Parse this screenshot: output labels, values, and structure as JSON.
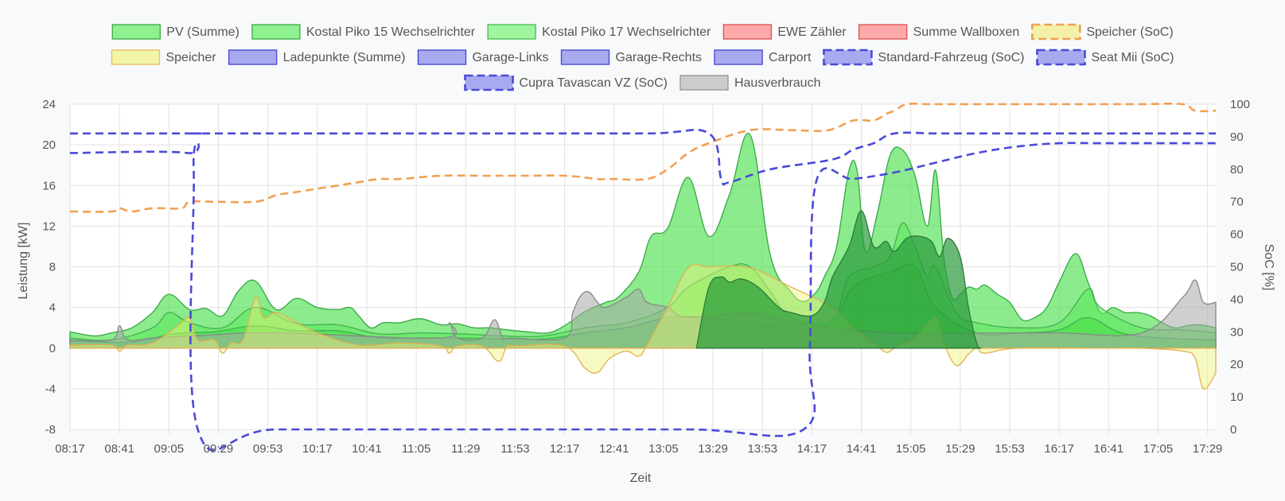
{
  "chart_data": {
    "type": "area",
    "xlabel": "Zeit",
    "ylabel_left": "Leistung [kW]",
    "ylabel_right": "SoC [%]",
    "ylim_left": [
      -8,
      24
    ],
    "ylim_right": [
      0,
      100
    ],
    "yticks_left": [
      -8,
      -4,
      0,
      4,
      8,
      12,
      16,
      20,
      24
    ],
    "yticks_right": [
      0,
      10,
      20,
      30,
      40,
      50,
      60,
      70,
      80,
      90,
      100
    ],
    "grid": true,
    "legend_position": "top",
    "x_ticks": [
      "08:17",
      "08:41",
      "09:05",
      "09:29",
      "09:53",
      "10:17",
      "10:41",
      "11:05",
      "11:29",
      "11:53",
      "12:17",
      "12:41",
      "13:05",
      "13:29",
      "13:53",
      "14:17",
      "14:41",
      "15:05",
      "15:29",
      "15:53",
      "16:17",
      "16:41",
      "17:05",
      "17:29"
    ],
    "x_range_minutes": [
      0,
      556
    ],
    "legend": [
      {
        "name": "PV (Summe)",
        "fill": "#8ff08f",
        "stroke": "#3fb04f",
        "dashed": false
      },
      {
        "name": "Kostal Piko 15 Wechselrichter",
        "fill": "#8ff08f",
        "stroke": "#3fb04f",
        "dashed": false
      },
      {
        "name": "Kostal Piko 17 Wechselrichter",
        "fill": "#9ef59e",
        "stroke": "#4cc05c",
        "dashed": false
      },
      {
        "name": "EWE Zähler",
        "fill": "#ffaaaa",
        "stroke": "#e05555",
        "dashed": false
      },
      {
        "name": "Summe Wallboxen",
        "fill": "#ffaaaa",
        "stroke": "#e05555",
        "dashed": false
      },
      {
        "name": "Speicher (SoC)",
        "fill": "#f5f0a8",
        "stroke": "#f0a050",
        "dashed": true
      },
      {
        "name": "Speicher",
        "fill": "#f2f5a8",
        "stroke": "#e8c060",
        "dashed": false
      },
      {
        "name": "Ladepunkte (Summe)",
        "fill": "#a8aaf0",
        "stroke": "#4a4ad8",
        "dashed": false
      },
      {
        "name": "Garage-Links",
        "fill": "#a8aaf0",
        "stroke": "#4a4ad8",
        "dashed": false
      },
      {
        "name": "Garage-Rechts",
        "fill": "#a8aaf0",
        "stroke": "#4a4ad8",
        "dashed": false
      },
      {
        "name": "Carport",
        "fill": "#a8aaf0",
        "stroke": "#4a4ad8",
        "dashed": false
      },
      {
        "name": "Standard-Fahrzeug (SoC)",
        "fill": "#a8aaf0",
        "stroke": "#4a4ad8",
        "dashed": true
      },
      {
        "name": "Seat Mii (SoC)",
        "fill": "#a8aaf0",
        "stroke": "#4a4ad8",
        "dashed": true
      },
      {
        "name": "Cupra Tavascan VZ (SoC)",
        "fill": "#a8aaf0",
        "stroke": "#4a4ad8",
        "dashed": true
      },
      {
        "name": "Hausverbrauch",
        "fill": "#cccccc",
        "stroke": "#999999",
        "dashed": false
      }
    ],
    "series": [
      {
        "name": "PV (Summe)",
        "axis": "left",
        "kind": "area",
        "fill": "#4fe04f",
        "fill_opacity": 0.65,
        "stroke": "#36a846",
        "x": [
          0,
          12,
          20,
          30,
          40,
          48,
          58,
          66,
          74,
          82,
          90,
          100,
          110,
          120,
          130,
          136,
          140,
          146,
          152,
          160,
          170,
          180,
          188,
          196,
          204,
          212,
          222,
          232,
          240,
          250,
          260,
          266,
          276,
          282,
          290,
          300,
          310,
          320,
          330,
          340,
          350,
          356,
          362,
          366,
          372,
          378,
          382,
          386,
          392,
          398,
          404,
          410,
          416,
          420,
          424,
          428,
          432,
          436,
          440,
          444,
          450,
          456,
          462,
          468,
          474,
          480,
          488,
          494,
          500,
          506,
          512,
          518,
          524,
          530,
          536,
          542,
          548,
          556
        ],
        "y": [
          1.6,
          1.2,
          1.5,
          2.0,
          3.5,
          5.3,
          3.8,
          3.9,
          3.2,
          5.7,
          6.6,
          3.8,
          4.9,
          4.0,
          3.8,
          4.0,
          3.2,
          2.0,
          2.5,
          2.5,
          2.9,
          2.3,
          2.4,
          2.0,
          2.0,
          1.8,
          1.6,
          1.5,
          2.2,
          3.6,
          4.5,
          5.0,
          7.5,
          11.0,
          11.8,
          16.8,
          11.0,
          15.1,
          21.0,
          9.0,
          5.5,
          4.6,
          5.5,
          7.0,
          10.0,
          17.5,
          17.4,
          9.5,
          13.5,
          19.0,
          19.5,
          17.0,
          12.0,
          17.5,
          9.0,
          5.0,
          5.3,
          6.0,
          5.8,
          6.2,
          5.3,
          4.5,
          2.8,
          3.0,
          4.0,
          6.5,
          9.3,
          6.5,
          3.5,
          4.0,
          3.5,
          3.5,
          3.2,
          2.5,
          2.0,
          2.2,
          2.3,
          2.0
        ]
      },
      {
        "name": "Kostal Piko 15 Wechselrichter",
        "axis": "left",
        "kind": "area",
        "fill": "#5ae85a",
        "fill_opacity": 0.55,
        "stroke": "#40b050",
        "x": [
          0,
          20,
          40,
          48,
          58,
          74,
          90,
          110,
          130,
          150,
          170,
          190,
          210,
          230,
          250,
          270,
          290,
          300,
          320,
          330,
          340,
          350,
          370,
          378,
          390,
          398,
          404,
          410,
          416,
          420,
          430,
          440,
          460,
          480,
          494,
          500,
          520,
          540,
          556
        ],
        "y": [
          1.0,
          0.8,
          2.0,
          3.5,
          2.5,
          2.0,
          4.0,
          2.4,
          2.3,
          1.4,
          1.5,
          1.4,
          1.2,
          1.2,
          2.0,
          2.5,
          4.0,
          6.0,
          8.0,
          8.0,
          5.5,
          3.0,
          2.8,
          7.0,
          8.0,
          9.0,
          12.3,
          10.0,
          7.0,
          8.0,
          3.5,
          2.5,
          2.0,
          2.5,
          5.8,
          4.0,
          2.0,
          1.8,
          1.5
        ]
      },
      {
        "name": "Kostal Piko 17 Wechselrichter",
        "axis": "left",
        "kind": "area",
        "fill": "#45dd45",
        "fill_opacity": 0.55,
        "stroke": "#40b050",
        "x": [
          0,
          30,
          50,
          70,
          90,
          110,
          130,
          150,
          170,
          190,
          210,
          230,
          250,
          270,
          290,
          310,
          330,
          340,
          350,
          370,
          380,
          398,
          410,
          420,
          440,
          460,
          480,
          494,
          510,
          530,
          556
        ],
        "y": [
          0.7,
          0.6,
          1.4,
          1.6,
          2.2,
          1.7,
          1.7,
          1.0,
          1.0,
          1.0,
          0.9,
          0.9,
          1.5,
          2.0,
          3.0,
          3.0,
          2.5,
          2.2,
          1.8,
          2.5,
          6.0,
          7.5,
          8.0,
          4.0,
          1.5,
          1.5,
          1.8,
          3.0,
          1.5,
          1.0,
          0.8
        ]
      },
      {
        "name": "Hausverbrauch",
        "axis": "left",
        "kind": "area",
        "fill": "#a8a8a8",
        "fill_opacity": 0.55,
        "stroke": "#888888",
        "x": [
          0,
          20,
          24,
          28,
          40,
          60,
          100,
          180,
          184,
          188,
          200,
          206,
          210,
          214,
          240,
          244,
          248,
          252,
          256,
          260,
          270,
          276,
          280,
          290,
          300,
          330,
          350,
          370,
          400,
          440,
          480,
          520,
          540,
          546,
          550,
          556
        ],
        "y": [
          0.8,
          0.8,
          2.2,
          0.8,
          1.0,
          1.2,
          1.5,
          1.0,
          2.5,
          1.0,
          1.0,
          2.8,
          1.0,
          1.0,
          1.0,
          3.5,
          5.2,
          5.5,
          4.5,
          4.0,
          5.0,
          5.8,
          4.5,
          4.0,
          3.0,
          3.5,
          2.5,
          2.0,
          1.5,
          1.5,
          1.5,
          1.5,
          5.0,
          6.7,
          4.5,
          4.5
        ]
      },
      {
        "name": "Speicher",
        "axis": "left",
        "kind": "area",
        "fill": "#eef27a",
        "fill_opacity": 0.45,
        "stroke": "#e0b050",
        "x": [
          0,
          20,
          24,
          28,
          40,
          54,
          58,
          62,
          70,
          74,
          78,
          84,
          90,
          94,
          100,
          110,
          120,
          140,
          160,
          180,
          184,
          188,
          200,
          208,
          212,
          216,
          240,
          250,
          256,
          262,
          270,
          276,
          280,
          290,
          300,
          310,
          330,
          350,
          370,
          380,
          390,
          396,
          400,
          404,
          410,
          420,
          424,
          430,
          436,
          440,
          444,
          460,
          500,
          520,
          540,
          546,
          550,
          556
        ],
        "y": [
          0.3,
          0.3,
          -0.3,
          0.3,
          0.5,
          2.5,
          3.0,
          0.8,
          0.8,
          -0.5,
          0.5,
          0.8,
          5.0,
          3.0,
          3.5,
          2.5,
          1.5,
          0.3,
          0.5,
          0.2,
          -0.5,
          0.2,
          0.2,
          -1.3,
          0.2,
          0.2,
          0.2,
          -2.0,
          -2.4,
          -1.0,
          -0.3,
          -0.8,
          0.3,
          4.0,
          7.9,
          8.0,
          7.9,
          6.0,
          4.0,
          2.0,
          0.5,
          -0.4,
          0.0,
          0.4,
          1.0,
          3.0,
          0.5,
          -1.7,
          -0.6,
          0.0,
          -0.5,
          0.0,
          0.0,
          0.0,
          -0.3,
          -1.0,
          -4.0,
          -2.5
        ]
      },
      {
        "name": "Ladepunkte (Summe)",
        "axis": "left",
        "kind": "area",
        "fill": "#2a9a3a",
        "fill_opacity": 0.7,
        "stroke": "#2a7a3a",
        "x": [
          304,
          310,
          316,
          320,
          326,
          334,
          344,
          350,
          360,
          366,
          370,
          378,
          384,
          390,
          396,
          400,
          406,
          412,
          418,
          422,
          426,
          432,
          436,
          440,
          442
        ],
        "y": [
          0,
          6.0,
          7.0,
          6.5,
          6.8,
          6.0,
          4.0,
          3.5,
          3.2,
          4.5,
          7.0,
          10.0,
          13.5,
          10.0,
          10.5,
          9.5,
          10.8,
          11.0,
          10.5,
          9.0,
          10.8,
          9.0,
          4.0,
          0.5,
          0
        ]
      },
      {
        "name": "Speicher (SoC)",
        "axis": "right",
        "kind": "line",
        "dashed": true,
        "stroke": "#f0a050",
        "x": [
          0,
          20,
          24,
          30,
          40,
          54,
          58,
          70,
          90,
          100,
          110,
          120,
          130,
          140,
          150,
          160,
          180,
          200,
          220,
          240,
          256,
          260,
          264,
          280,
          290,
          300,
          310,
          330,
          350,
          368,
          380,
          390,
          396,
          400,
          406,
          416,
          420,
          440,
          460,
          480,
          500,
          520,
          540,
          546,
          556
        ],
        "y": [
          67,
          67,
          68,
          67,
          68,
          68,
          70,
          70,
          70,
          72,
          73,
          74,
          75,
          76,
          77,
          77,
          78,
          78,
          78,
          78,
          77,
          77,
          77,
          77,
          80,
          85,
          88,
          92,
          92,
          92,
          95,
          95,
          97,
          98,
          100,
          100,
          100,
          100,
          100,
          100,
          100,
          100,
          100,
          98,
          98
        ]
      },
      {
        "name": "Seat Mii (SoC)",
        "axis": "right",
        "kind": "line",
        "dashed": true,
        "stroke": "#4a4ad8",
        "x": [
          0,
          58,
          61,
          64,
          120,
          200,
          280,
          310,
          316,
          320,
          340,
          370,
          380,
          390,
          400,
          420,
          440,
          470,
          500,
          530,
          556
        ],
        "y": [
          91,
          91,
          91,
          91,
          91,
          91,
          91,
          91,
          77,
          76,
          80,
          83,
          86,
          88,
          91,
          91,
          91,
          91,
          91,
          91,
          91
        ]
      },
      {
        "name": "Standard-Fahrzeug (SoC)",
        "axis": "right",
        "kind": "line",
        "dashed": true,
        "stroke": "#4a4ad8",
        "x": [
          0,
          57,
          60,
          62,
          100,
          200,
          300,
          356,
          359,
          362,
          380,
          400,
          420,
          440,
          460,
          480,
          500,
          520,
          556
        ],
        "y": [
          85,
          85,
          80,
          0,
          0,
          0,
          0,
          0,
          25,
          76,
          77,
          79,
          82,
          85,
          87,
          88,
          88,
          88,
          88
        ]
      }
    ]
  }
}
